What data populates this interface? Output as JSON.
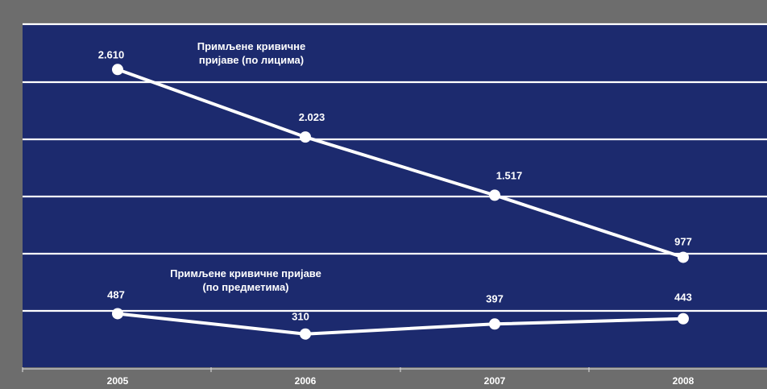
{
  "chart_data": {
    "type": "line",
    "title": "",
    "xlabel": "",
    "ylabel": "",
    "categories": [
      "2005",
      "2006",
      "2007",
      "2008"
    ],
    "ylim": [
      0,
      3000
    ],
    "grid": true,
    "legend": "none",
    "colors": {
      "outer_background": "#6d6d6d",
      "plot_background": "#1c2a6e",
      "line": "#ffffff",
      "gridline": "#ffffff",
      "text": "#ffffff"
    },
    "series": [
      {
        "name": "Примљене кривичне пријаве (по лицима)",
        "name_lines": [
          "Примљене кривичне",
          "пријаве (по лицима)"
        ],
        "values": [
          2610,
          2023,
          1517,
          977
        ],
        "value_labels": [
          "2.610",
          "2.023",
          "1.517",
          "977"
        ]
      },
      {
        "name": "Примљене кривичне пријаве (по предметима)",
        "name_lines": [
          "Примљене кривичне пријаве",
          "(по предметима)"
        ],
        "values": [
          487,
          310,
          397,
          443
        ],
        "value_labels": [
          "487",
          "310",
          "397",
          "443"
        ]
      }
    ]
  }
}
